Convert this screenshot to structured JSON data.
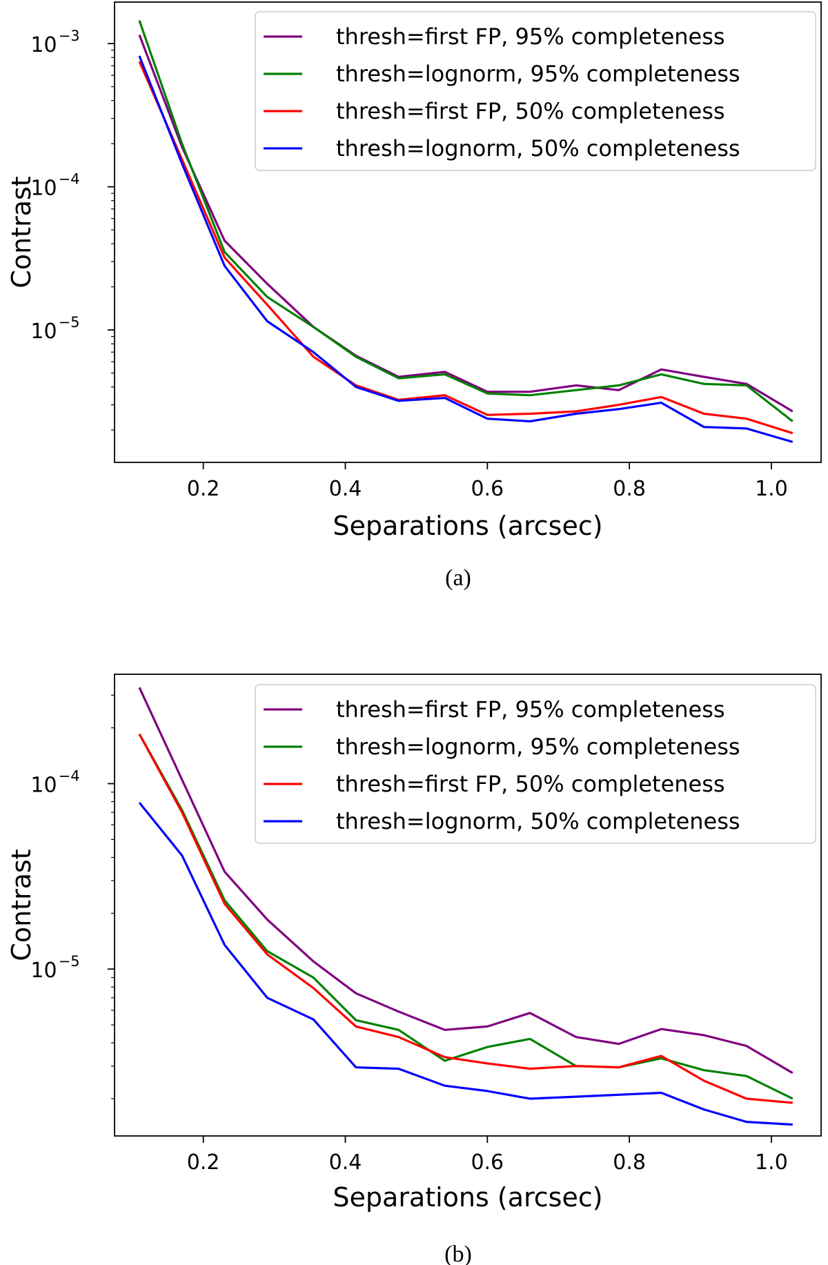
{
  "chart_data": [
    {
      "type": "line",
      "panel": "a",
      "caption": "(a)",
      "xlabel": "Separations (arcsec)",
      "ylabel": "Contrast",
      "yscale": "log",
      "xlim": [
        0.075,
        1.07
      ],
      "ylim_log10": [
        -5.925,
        -2.71
      ],
      "xticks": [
        0.2,
        0.4,
        0.6,
        0.8,
        1.0
      ],
      "xtick_labels": [
        "0.2",
        "0.4",
        "0.6",
        "0.8",
        "1.0"
      ],
      "yticks": [
        {
          "exp": -3,
          "text": "10",
          "sup": "−3"
        },
        {
          "exp": -4,
          "text": "10",
          "sup": "−4"
        },
        {
          "exp": -5,
          "text": "10",
          "sup": "−5"
        }
      ],
      "legend_position": "top-right",
      "x": [
        0.11,
        0.17,
        0.23,
        0.29,
        0.355,
        0.415,
        0.475,
        0.54,
        0.6,
        0.66,
        0.725,
        0.785,
        0.845,
        0.905,
        0.965,
        1.03
      ],
      "series": [
        {
          "name": "thresh=first FP, 95% completeness",
          "color": "#7f007f",
          "values": [
            0.00115,
            0.00019,
            4.2e-05,
            2.1e-05,
            1.05e-05,
            6.6e-06,
            4.7e-06,
            5.1e-06,
            3.7e-06,
            3.7e-06,
            4.1e-06,
            3.8e-06,
            5.3e-06,
            4.7e-06,
            4.2e-06,
            2.7e-06
          ]
        },
        {
          "name": "thresh=lognorm, 95% completeness",
          "color": "#008000",
          "values": [
            0.00145,
            0.0002,
            3.5e-05,
            1.7e-05,
            1.05e-05,
            6.5e-06,
            4.6e-06,
            4.9e-06,
            3.6e-06,
            3.5e-06,
            3.8e-06,
            4.1e-06,
            4.9e-06,
            4.2e-06,
            4.1e-06,
            2.3e-06
          ]
        },
        {
          "name": "thresh=first FP, 50% completeness",
          "color": "#ff0000",
          "values": [
            0.00075,
            0.000155,
            3.2e-05,
            1.5e-05,
            6.5e-06,
            4.1e-06,
            3.25e-06,
            3.5e-06,
            2.55e-06,
            2.6e-06,
            2.7e-06,
            3e-06,
            3.4e-06,
            2.6e-06,
            2.4e-06,
            1.9e-06
          ]
        },
        {
          "name": "thresh=lognorm, 50% completeness",
          "color": "#0000ff",
          "values": [
            0.00082,
            0.000145,
            2.8e-05,
            1.15e-05,
            7e-06,
            4e-06,
            3.2e-06,
            3.35e-06,
            2.4e-06,
            2.3e-06,
            2.6e-06,
            2.8e-06,
            3.1e-06,
            2.1e-06,
            2.05e-06,
            1.65e-06
          ]
        }
      ]
    },
    {
      "type": "line",
      "panel": "b",
      "caption": "(b)",
      "xlabel": "Separations (arcsec)",
      "ylabel": "Contrast",
      "yscale": "log",
      "xlim": [
        0.075,
        1.07
      ],
      "ylim_log10": [
        -5.9,
        -3.41
      ],
      "xticks": [
        0.2,
        0.4,
        0.6,
        0.8,
        1.0
      ],
      "xtick_labels": [
        "0.2",
        "0.4",
        "0.6",
        "0.8",
        "1.0"
      ],
      "yticks": [
        {
          "exp": -4,
          "text": "10",
          "sup": "−4"
        },
        {
          "exp": -5,
          "text": "10",
          "sup": "−5"
        }
      ],
      "legend_position": "top-right",
      "x": [
        0.11,
        0.17,
        0.23,
        0.29,
        0.355,
        0.415,
        0.475,
        0.54,
        0.6,
        0.66,
        0.725,
        0.785,
        0.845,
        0.905,
        0.965,
        1.03
      ],
      "series": [
        {
          "name": "thresh=first FP, 95% completeness",
          "color": "#7f007f",
          "values": [
            0.00033,
            0.000105,
            3.35e-05,
            1.85e-05,
            1.1e-05,
            7.4e-06,
            5.9e-06,
            4.7e-06,
            4.9e-06,
            5.8e-06,
            4.3e-06,
            3.95e-06,
            4.75e-06,
            4.4e-06,
            3.85e-06,
            2.75e-06
          ]
        },
        {
          "name": "thresh=lognorm, 95% completeness",
          "color": "#008000",
          "values": [
            0.000185,
            7.2e-05,
            2.35e-05,
            1.25e-05,
            9e-06,
            5.3e-06,
            4.7e-06,
            3.2e-06,
            3.8e-06,
            4.2e-06,
            3e-06,
            2.95e-06,
            3.3e-06,
            2.85e-06,
            2.65e-06,
            2e-06
          ]
        },
        {
          "name": "thresh=first FP, 50% completeness",
          "color": "#ff0000",
          "values": [
            0.000185,
            7e-05,
            2.25e-05,
            1.2e-05,
            7.9e-06,
            4.9e-06,
            4.3e-06,
            3.35e-06,
            3.1e-06,
            2.9e-06,
            3e-06,
            2.95e-06,
            3.4e-06,
            2.5e-06,
            2e-06,
            1.9e-06
          ]
        },
        {
          "name": "thresh=lognorm, 50% completeness",
          "color": "#0000ff",
          "values": [
            7.9e-05,
            4.1e-05,
            1.35e-05,
            7e-06,
            5.35e-06,
            2.95e-06,
            2.9e-06,
            2.35e-06,
            2.2e-06,
            2e-06,
            2.05e-06,
            2.1e-06,
            2.15e-06,
            1.75e-06,
            1.5e-06,
            1.45e-06
          ]
        }
      ]
    }
  ]
}
